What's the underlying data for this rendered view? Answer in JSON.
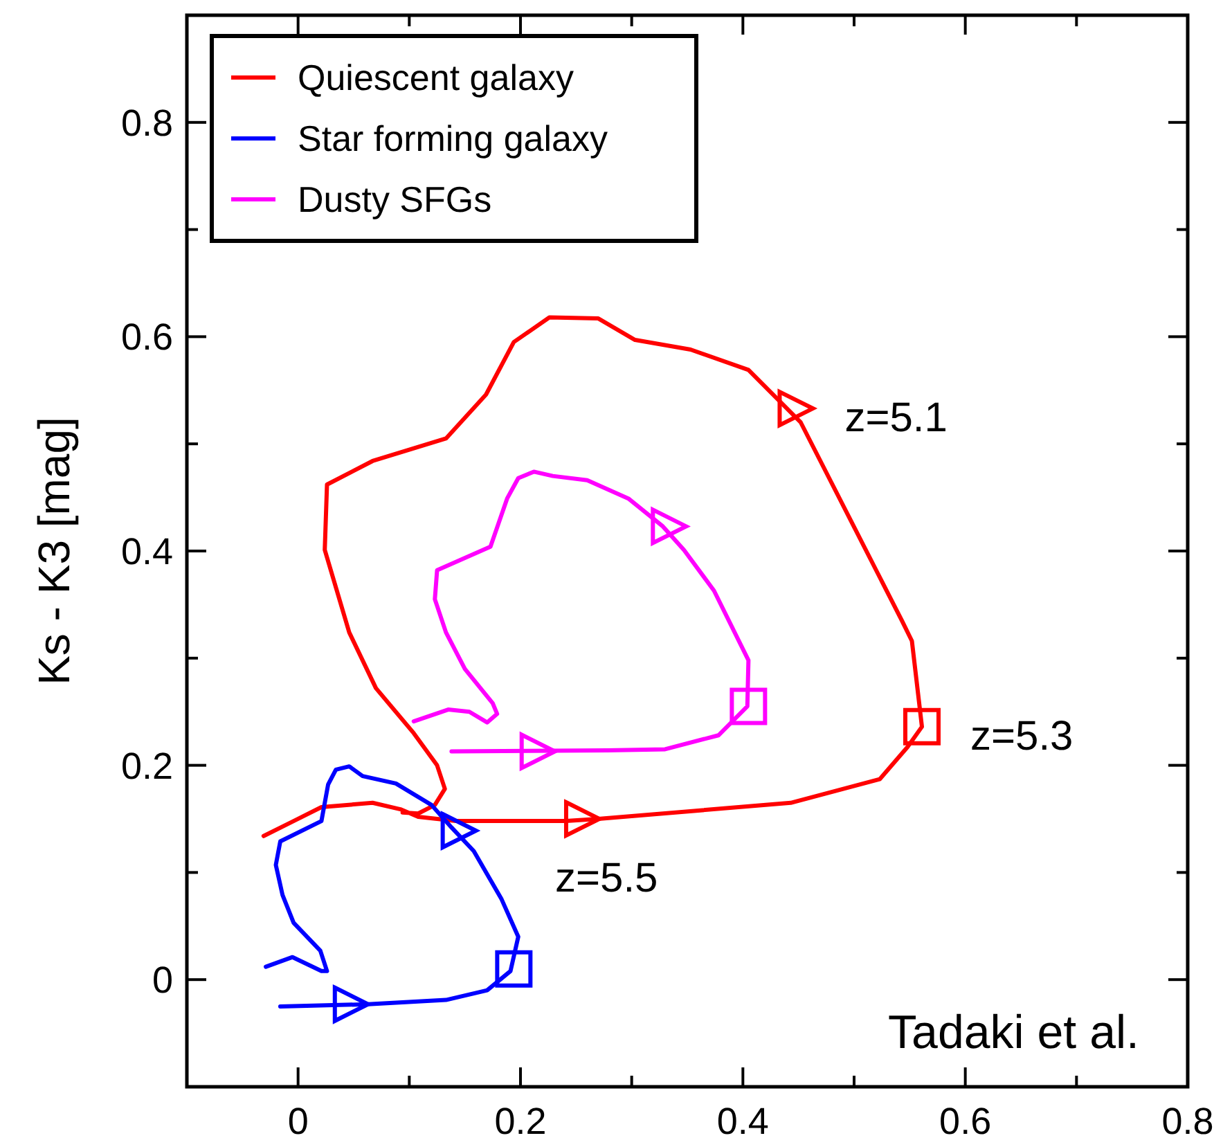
{
  "chart_data": {
    "type": "line",
    "ylabel": "Ks - K3 [mag]",
    "xlim": [
      -0.1,
      0.8
    ],
    "ylim": [
      -0.1,
      0.9
    ],
    "xticks": [
      0,
      {
        "value": 0.1,
        "label": null
      },
      0.2,
      {
        "value": 0.3,
        "label": null
      },
      0.4,
      {
        "value": 0.5,
        "label": null
      },
      0.6,
      {
        "value": 0.7,
        "label": null
      },
      0.8
    ],
    "yticks": [
      0,
      {
        "value": 0.1,
        "label": null
      },
      0.2,
      {
        "value": 0.3,
        "label": null
      },
      0.4,
      {
        "value": 0.5,
        "label": null
      },
      0.6,
      {
        "value": 0.7,
        "label": null
      },
      0.8
    ],
    "grid": false,
    "legend": "top left",
    "line_style": "solid",
    "marker": "none",
    "series": [
      {
        "name": "Quiescent galaxy",
        "color": "#ff0000",
        "x": [
          -0.031,
          -0.004,
          0.021,
          0.067,
          0.092,
          0.108,
          0.142,
          0.241,
          0.27,
          0.443,
          0.523,
          0.548,
          0.561,
          0.552,
          0.543,
          0.452,
          0.405,
          0.353,
          0.303,
          0.27,
          0.226,
          0.194,
          0.169,
          0.133,
          0.067,
          0.026,
          0.024,
          0.046,
          0.07,
          0.104,
          0.125,
          0.132,
          0.123,
          0.108,
          0.094
        ],
        "values": [
          0.134,
          0.148,
          0.161,
          0.165,
          0.159,
          0.152,
          0.148,
          0.148,
          0.15,
          0.165,
          0.187,
          0.217,
          0.236,
          0.316,
          0.335,
          0.52,
          0.569,
          0.588,
          0.597,
          0.617,
          0.618,
          0.595,
          0.546,
          0.505,
          0.484,
          0.462,
          0.401,
          0.324,
          0.272,
          0.23,
          0.2,
          0.178,
          0.163,
          0.155,
          0.156
        ]
      },
      {
        "name": "Star forming galaxy",
        "color": "#0000ff",
        "x": [
          -0.016,
          0.063,
          0.133,
          0.17,
          0.191,
          0.198,
          0.183,
          0.158,
          0.138,
          0.12,
          0.088,
          0.058,
          0.046,
          0.034,
          0.027,
          0.021,
          -0.016,
          -0.02,
          -0.014,
          -0.004,
          0.02,
          0.026,
          0.021,
          -0.005,
          -0.029
        ],
        "values": [
          -0.025,
          -0.023,
          -0.019,
          -0.01,
          0.008,
          0.04,
          0.075,
          0.12,
          0.142,
          0.163,
          0.183,
          0.19,
          0.199,
          0.196,
          0.182,
          0.148,
          0.129,
          0.107,
          0.079,
          0.053,
          0.027,
          0.008,
          0.008,
          0.021,
          0.012
        ]
      },
      {
        "name": "Dusty SFGs",
        "color": "#ff00ff",
        "x": [
          0.138,
          0.278,
          0.33,
          0.378,
          0.404,
          0.405,
          0.374,
          0.347,
          0.328,
          0.297,
          0.26,
          0.229,
          0.212,
          0.198,
          0.188,
          0.173,
          0.125,
          0.123,
          0.133,
          0.15,
          0.175,
          0.179,
          0.17,
          0.154,
          0.135,
          0.104
        ],
        "values": [
          0.213,
          0.214,
          0.215,
          0.228,
          0.255,
          0.298,
          0.363,
          0.401,
          0.423,
          0.449,
          0.466,
          0.47,
          0.474,
          0.468,
          0.449,
          0.404,
          0.382,
          0.355,
          0.324,
          0.29,
          0.258,
          0.248,
          0.24,
          0.25,
          0.252,
          0.241
        ]
      },
      {
        "type": "scatter",
        "marker": "triangle",
        "x": [
          0.256,
          0.048,
          0.216
        ],
        "values": [
          0.15,
          -0.023,
          0.213
        ],
        "colors": [
          "#ff0000",
          "#0000ff",
          "#ff00ff"
        ]
      },
      {
        "type": "scatter",
        "marker": "square",
        "x": [
          0.561,
          0.194,
          0.405
        ],
        "values": [
          0.236,
          0.01,
          0.255
        ],
        "colors": [
          "#ff0000",
          "#0000ff",
          "#ff00ff"
        ]
      },
      {
        "type": "scatter",
        "marker": "triangle",
        "x": [
          0.448,
          0.145,
          0.334
        ],
        "values": [
          0.533,
          0.139,
          0.423
        ],
        "colors": [
          "#ff0000",
          "#0000ff",
          "#ff00ff"
        ]
      }
    ],
    "annotations": [
      {
        "text": "z=5.1",
        "x": 0.448,
        "y": 0.533
      },
      {
        "text": "z=5.3",
        "x": 0.561,
        "y": 0.236
      },
      {
        "text": "z=5.5",
        "x": 0.256,
        "y": 0.15
      },
      "Tadaki et al."
    ]
  }
}
